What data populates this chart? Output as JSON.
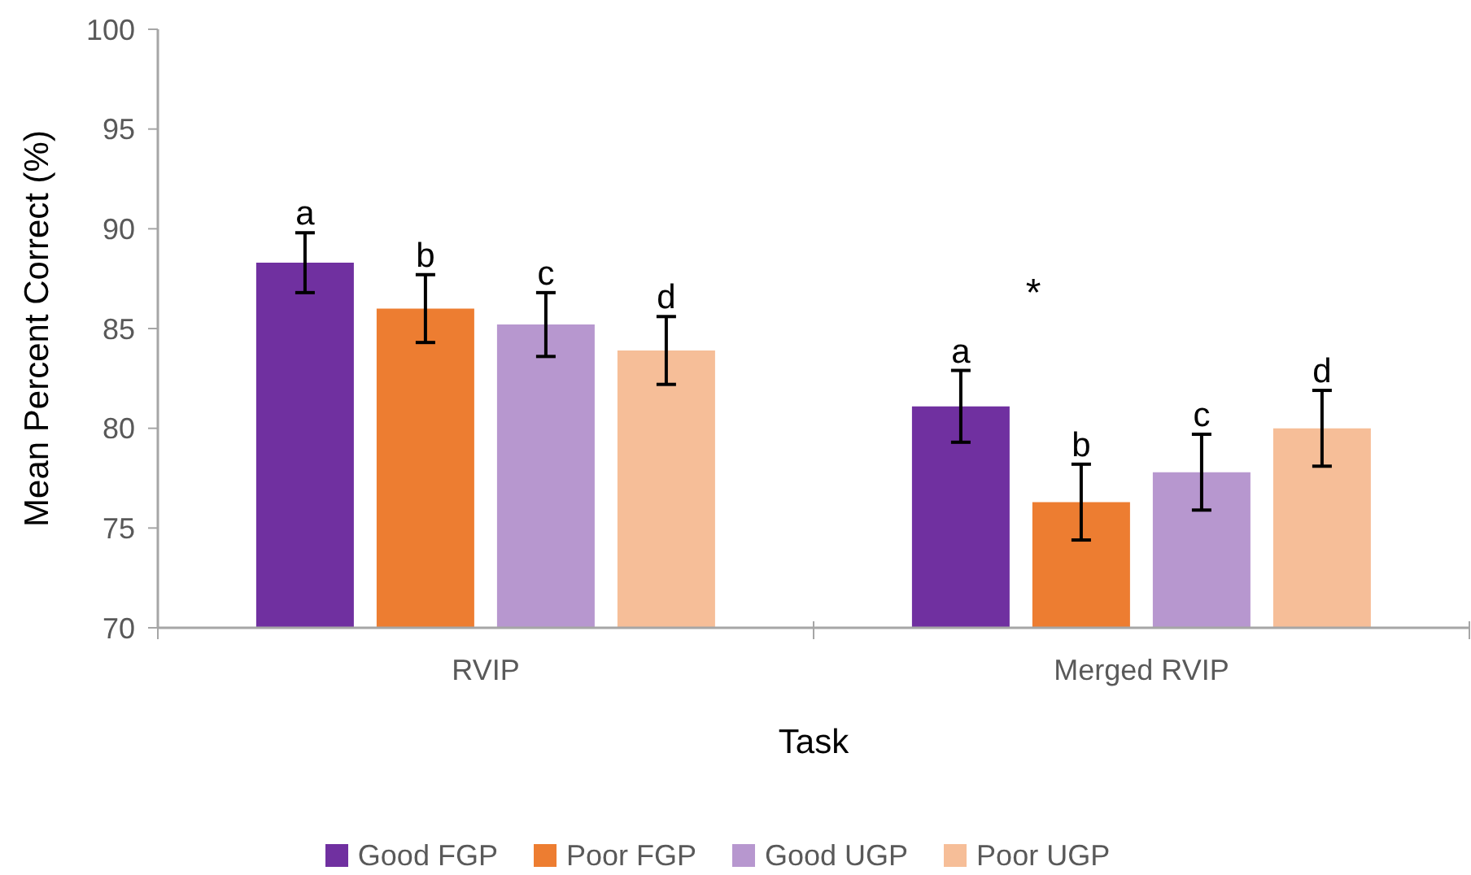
{
  "chart_data": {
    "type": "bar",
    "xlabel": "Task",
    "ylabel": "Mean Percent Correct (%)",
    "categories": [
      "RVIP",
      "Merged RVIP"
    ],
    "series": [
      {
        "name": "Good FGP",
        "color": "#7030a0",
        "values": [
          88.3,
          81.1
        ],
        "errors": [
          1.5,
          1.8
        ],
        "value_labels": [
          "a",
          "a"
        ]
      },
      {
        "name": "Poor FGP",
        "color": "#ed7d31",
        "values": [
          86.0,
          76.3
        ],
        "errors": [
          1.7,
          1.9
        ],
        "value_labels": [
          "b",
          "b"
        ]
      },
      {
        "name": "Good UGP",
        "color": "#b797cf",
        "values": [
          85.2,
          77.8
        ],
        "errors": [
          1.6,
          1.9
        ],
        "value_labels": [
          "c",
          "c"
        ]
      },
      {
        "name": "Poor UGP",
        "color": "#f6be98",
        "values": [
          83.9,
          80.0
        ],
        "errors": [
          1.7,
          1.9
        ],
        "value_labels": [
          "d",
          "d"
        ]
      }
    ],
    "ylim": [
      70,
      100
    ],
    "yticks": [
      70,
      75,
      80,
      85,
      90,
      95,
      100
    ],
    "legend": "bottom",
    "annotations": [
      "*"
    ]
  }
}
